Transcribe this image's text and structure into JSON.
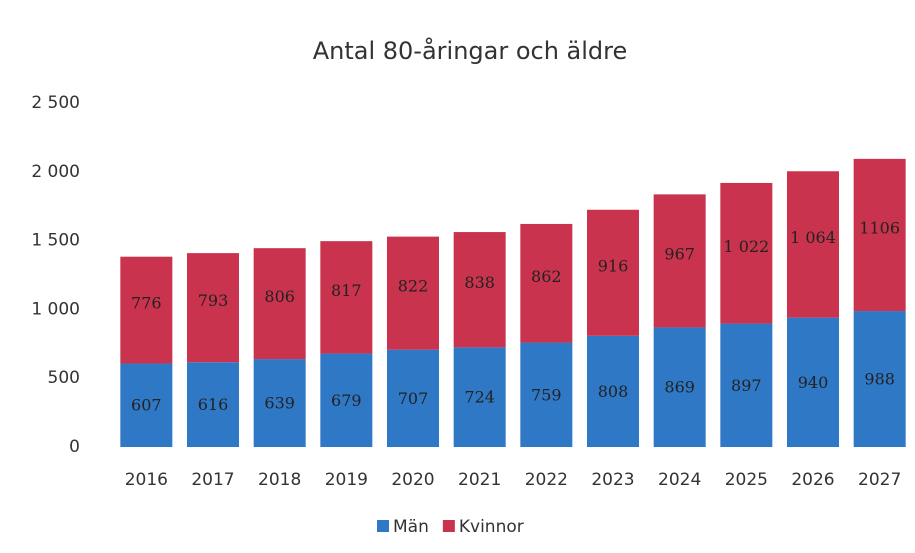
{
  "chart_data": {
    "type": "stacked_bar",
    "title": "Antal 80-åringar och äldre",
    "categories": [
      "2016",
      "2017",
      "2018",
      "2019",
      "2020",
      "2021",
      "2022",
      "2023",
      "2024",
      "2025",
      "2026",
      "2027"
    ],
    "series": [
      {
        "name": "Män",
        "color": "#2f78c6",
        "values": [
          607,
          616,
          639,
          679,
          707,
          724,
          759,
          808,
          869,
          897,
          940,
          988
        ]
      },
      {
        "name": "Kvinnor",
        "color": "#c9334d",
        "values": [
          776,
          793,
          806,
          817,
          822,
          838,
          862,
          916,
          967,
          1022,
          1064,
          1106
        ],
        "value_labels": [
          "776",
          "793",
          "806",
          "817",
          "822",
          "838",
          "862",
          "916",
          "967",
          "1 022",
          "1 064",
          "1106"
        ]
      }
    ],
    "ylim": [
      0,
      2500
    ],
    "yticks": [
      0,
      500,
      {
        "value": 1000,
        "label": "1 000"
      },
      {
        "value": 1500,
        "label": "1 500"
      },
      {
        "value": 2000,
        "label": "2 000"
      },
      {
        "value": 2500,
        "label": "2 500"
      }
    ],
    "grid": false,
    "legend": "bottom"
  }
}
